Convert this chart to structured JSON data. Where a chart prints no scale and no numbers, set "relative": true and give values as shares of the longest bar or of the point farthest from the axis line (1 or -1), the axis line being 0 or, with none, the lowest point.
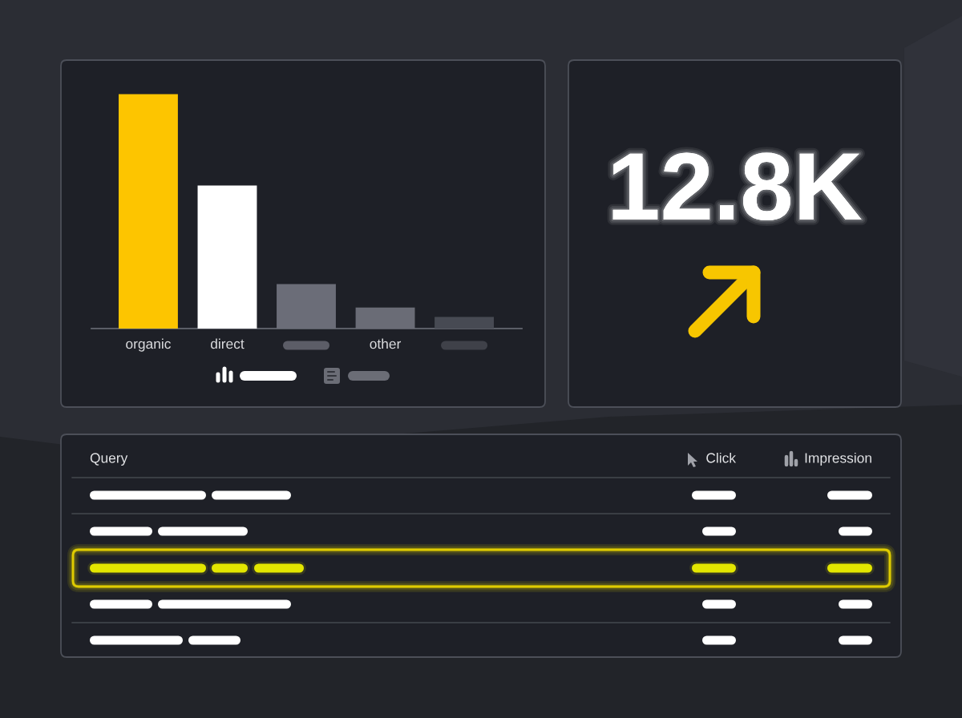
{
  "chart_data": [
    {
      "type": "bar",
      "categories": [
        "organic",
        "direct",
        null,
        "other",
        null
      ],
      "values": [
        1,
        0.61,
        0.19,
        0.09,
        0.05
      ],
      "colors": [
        "#fdc500",
        "#ffffff",
        "#6b6d78",
        "#6a6c76",
        "#474a53"
      ],
      "relative": true
    },
    {
      "type": "other",
      "annotations": [
        "12.8K"
      ]
    },
    {
      "type": "other",
      "annotations": [
        "Query",
        "Click",
        "Impression"
      ]
    }
  ]
}
